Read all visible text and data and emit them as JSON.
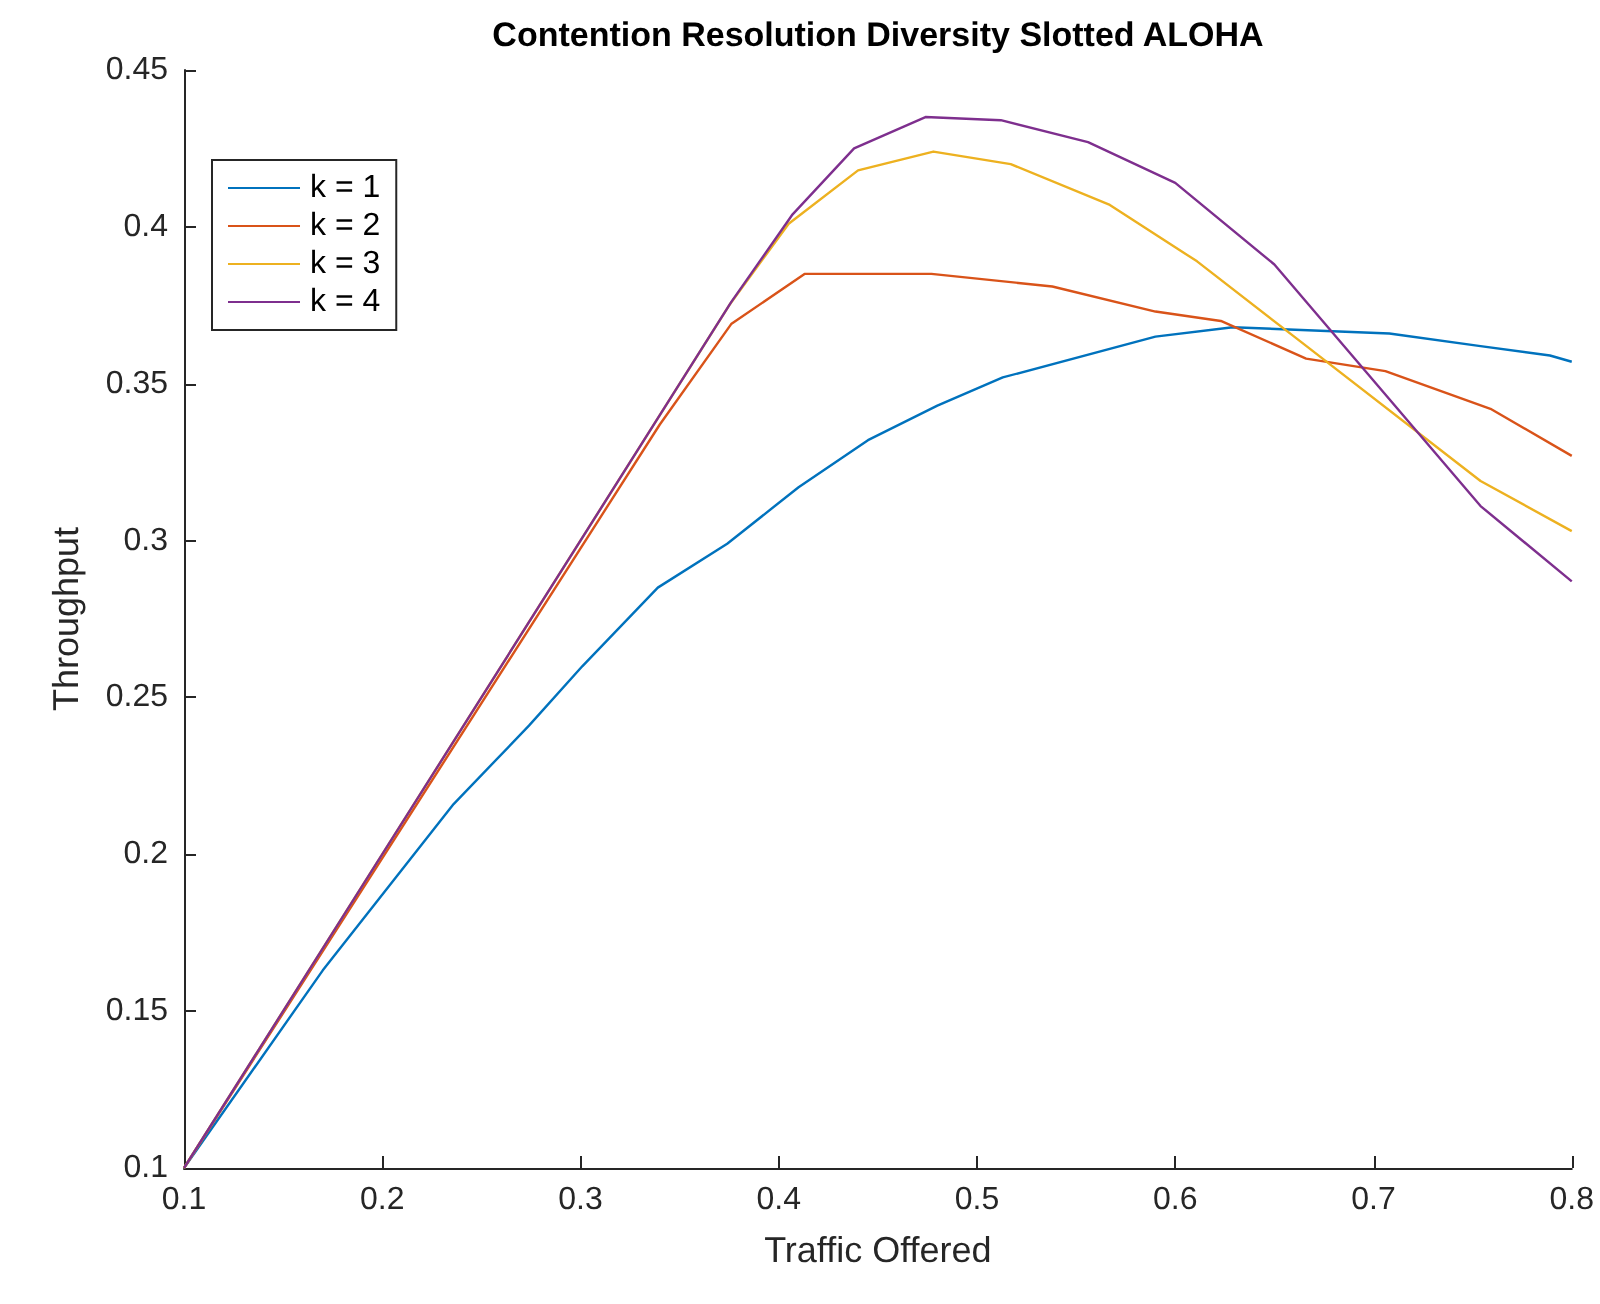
{
  "chart_data": {
    "type": "line",
    "title": "Contention Resolution Diversity Slotted ALOHA",
    "xlabel": "Traffic Offered",
    "ylabel": "Throughput",
    "xlim": [
      0.1,
      0.8
    ],
    "xticks": [
      0.1,
      0.2,
      0.3,
      0.4,
      0.5,
      0.6,
      0.7,
      0.8
    ],
    "ylim": [
      0.1,
      0.45
    ],
    "yticks": [
      0.1,
      0.15,
      0.2,
      0.25,
      0.3,
      0.35,
      0.4,
      0.45
    ],
    "grid": false,
    "legend": "top left",
    "marker": "none",
    "line_style": "solid",
    "series": [
      {
        "name": "k = 1",
        "color": "#0072bd",
        "x": [
          0.1,
          0.17,
          0.236,
          0.274,
          0.301,
          0.339,
          0.374,
          0.41,
          0.445,
          0.48,
          0.513,
          0.59,
          0.629,
          0.708,
          0.754,
          0.789,
          0.8
        ],
        "values": [
          0.1,
          0.163,
          0.216,
          0.241,
          0.26,
          0.285,
          0.299,
          0.317,
          0.332,
          0.343,
          0.352,
          0.365,
          0.368,
          0.366,
          0.362,
          0.359,
          0.357
        ]
      },
      {
        "name": "k = 2",
        "color": "#d95319",
        "x": [
          0.1,
          0.34,
          0.376,
          0.413,
          0.453,
          0.477,
          0.538,
          0.59,
          0.623,
          0.666,
          0.706,
          0.759,
          0.8
        ],
        "values": [
          0.1,
          0.337,
          0.369,
          0.385,
          0.385,
          0.385,
          0.381,
          0.373,
          0.37,
          0.358,
          0.354,
          0.342,
          0.327
        ]
      },
      {
        "name": "k = 3",
        "color": "#edb120",
        "x": [
          0.1,
          0.375,
          0.405,
          0.44,
          0.478,
          0.517,
          0.567,
          0.611,
          0.66,
          0.754,
          0.8
        ],
        "values": [
          0.1,
          0.375,
          0.401,
          0.418,
          0.424,
          0.42,
          0.407,
          0.389,
          0.365,
          0.319,
          0.303
        ]
      },
      {
        "name": "k = 4",
        "color": "#7e2f8e",
        "x": [
          0.1,
          0.376,
          0.407,
          0.438,
          0.474,
          0.512,
          0.556,
          0.6,
          0.65,
          0.754,
          0.8
        ],
        "values": [
          0.1,
          0.376,
          0.404,
          0.425,
          0.435,
          0.434,
          0.427,
          0.414,
          0.388,
          0.311,
          0.287
        ]
      }
    ]
  }
}
